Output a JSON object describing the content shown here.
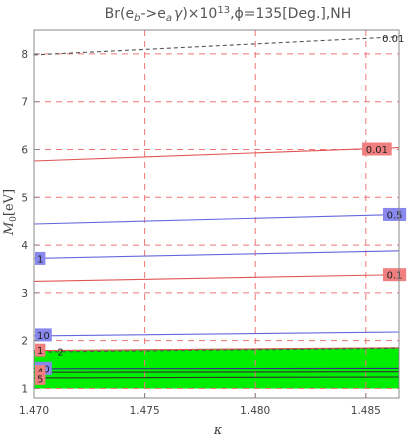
{
  "chart_data": {
    "type": "line",
    "title": "Br(e_b->e_a γ)×10^13, φ=135[Deg.],NH",
    "title_parts": {
      "pre": "Br(e",
      "sub1": "b",
      "mid": "->e",
      "sub2": "a",
      "gamma": "γ",
      "times": ")×10",
      "exp": "13",
      "post": ",ϕ=135[Deg.],NH"
    },
    "xlabel": "κ",
    "ylabel_main": "M",
    "ylabel_sub": "0",
    "ylabel_unit": "[eV]",
    "xlim": [
      1.47,
      1.4865
    ],
    "ylim": [
      0.8,
      8.5
    ],
    "x_ticks": [
      "1.470",
      "1.475",
      "1.480",
      "1.485"
    ],
    "x_tick_values": [
      1.47,
      1.475,
      1.48,
      1.485
    ],
    "y_ticks": [
      "1",
      "2",
      "3",
      "4",
      "5",
      "6",
      "7",
      "8"
    ],
    "y_tick_values": [
      1,
      2,
      3,
      4,
      5,
      6,
      7,
      8
    ],
    "grid": "dashed-red",
    "contours": [
      {
        "label": "0.01",
        "color": "#555555",
        "dashed": true,
        "x": [
          1.47,
          1.4865
        ],
        "y": [
          7.98,
          8.36
        ],
        "label_at": [
          1.4865,
          8.32
        ],
        "label_bg": "#ffffff"
      },
      {
        "label": "0.01",
        "color": "#e05555",
        "dashed": false,
        "x": [
          1.47,
          1.4865
        ],
        "y": [
          5.76,
          6.04
        ],
        "label_at": [
          1.4855,
          6.0
        ],
        "label_bg": "#f08080"
      },
      {
        "label": "0.5",
        "color": "#6666dd",
        "dashed": false,
        "x": [
          1.47,
          1.4865
        ],
        "y": [
          4.44,
          4.64
        ],
        "label_at": [
          1.4863,
          4.63
        ],
        "label_bg": "#8888ee"
      },
      {
        "label": "1",
        "color": "#6666dd",
        "dashed": false,
        "x": [
          1.47,
          1.4865
        ],
        "y": [
          3.72,
          3.88
        ],
        "label_at": [
          1.4701,
          3.71
        ],
        "label_bg": "#8888ee"
      },
      {
        "label": "0.1",
        "color": "#e05555",
        "dashed": false,
        "x": [
          1.47,
          1.4865
        ],
        "y": [
          3.24,
          3.38
        ],
        "label_at": [
          1.4863,
          3.37
        ],
        "label_bg": "#f08080"
      },
      {
        "label": "10",
        "color": "#6666dd",
        "dashed": false,
        "x": [
          1.47,
          1.4865
        ],
        "y": [
          2.1,
          2.18
        ],
        "label_at": [
          1.4703,
          2.11
        ],
        "label_bg": "#8888ee"
      },
      {
        "label": "1",
        "color": "#e05555",
        "dashed": false,
        "x": [
          1.47,
          1.4865
        ],
        "y": [
          1.79,
          1.85
        ],
        "label_at": [
          1.4701,
          1.79
        ],
        "label_bg": "#f08080"
      },
      {
        "label": "2",
        "color": "#555555",
        "dashed": true,
        "x": [
          1.47,
          1.4865
        ],
        "y": [
          1.76,
          1.84
        ],
        "label_at": [
          1.4712,
          1.76
        ],
        "label_bg": "#ffffff"
      },
      {
        "label": "50",
        "color": "#333388",
        "dashed": false,
        "x": [
          1.47,
          1.4865
        ],
        "y": [
          1.41,
          1.42
        ],
        "label_at": [
          1.4703,
          1.41
        ],
        "label_bg": "#8888ee"
      },
      {
        "label": "4",
        "color": "#333333",
        "dashed": false,
        "x": [
          1.47,
          1.4865
        ],
        "y": [
          1.34,
          1.35
        ],
        "label_at": [
          1.4702,
          1.34
        ],
        "label_bg": "#f08080"
      },
      {
        "label": "5",
        "color": "#333333",
        "dashed": false,
        "x": [
          1.47,
          1.4865
        ],
        "y": [
          1.22,
          1.24
        ],
        "label_at": [
          1.4702,
          1.2
        ],
        "label_bg": "#f08080"
      }
    ],
    "allowed_region": {
      "color": "#00ee00",
      "x": [
        1.47,
        1.4865
      ],
      "y": [
        1.0,
        1.8
      ],
      "y_top_right": 1.86
    }
  }
}
